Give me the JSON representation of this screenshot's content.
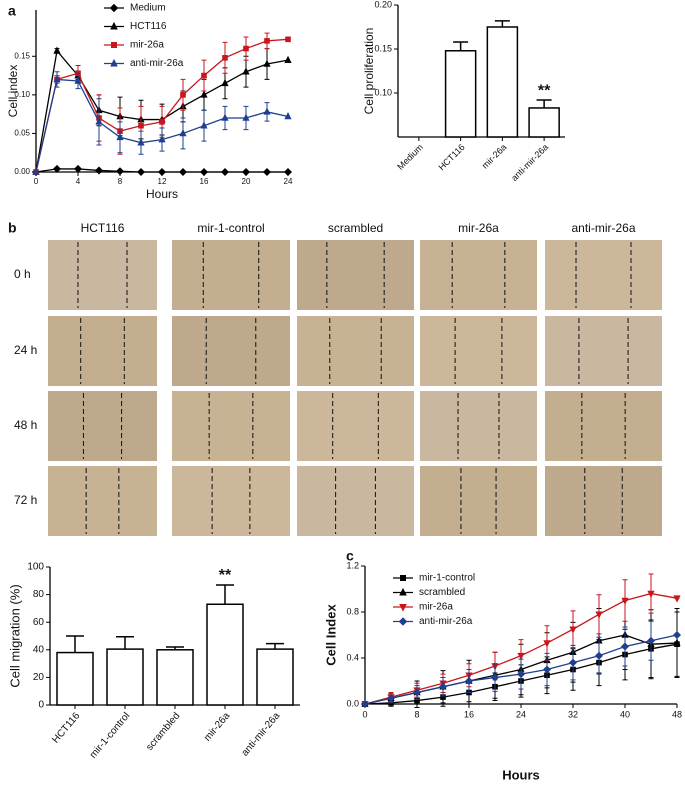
{
  "panel_labels": [
    "a",
    "b",
    "c"
  ],
  "image_grid": {
    "columns": [
      "HCT116",
      "mir-1-control",
      "scrambled",
      "mir-26a",
      "anti-mir-26a"
    ],
    "rows": [
      "0 h",
      "24 h",
      "48 h",
      "72 h"
    ]
  },
  "chart_data": [
    {
      "type": "line",
      "x_label": "Hours",
      "y_label": "Cell index",
      "x": [
        0,
        2,
        4,
        6,
        8,
        10,
        12,
        14,
        16,
        18,
        20,
        22,
        24
      ],
      "xlim": [
        0,
        24
      ],
      "xticks": [
        0,
        4,
        8,
        12,
        16,
        20,
        24
      ],
      "ylim": [
        0,
        0.21
      ],
      "yticks": [
        {
          "value": 0,
          "label": "0.00"
        },
        {
          "value": 0.05,
          "label": "0.05"
        },
        {
          "value": 0.1,
          "label": "0.10"
        },
        {
          "value": 0.15,
          "label": "0.15"
        }
      ],
      "series": [
        {
          "name": "Medium",
          "color": "#000000",
          "marker": "diamond",
          "values": [
            0,
            0.004,
            0.004,
            0.002,
            0.001,
            0,
            0,
            0,
            0,
            0,
            0,
            0,
            0
          ]
        },
        {
          "name": "HCT116",
          "color": "#000000",
          "marker": "triangle",
          "values": [
            0,
            0.157,
            0.125,
            0.08,
            0.072,
            0.068,
            0.068,
            0.085,
            0.1,
            0.115,
            0.13,
            0.14,
            0.145
          ],
          "errors": [
            null,
            0.003,
            0.005,
            0.02,
            0.025,
            0.025,
            0.02,
            0.02,
            0.02,
            0.02,
            0.02,
            0.02,
            null
          ]
        },
        {
          "name": "mir-26a",
          "color": "#c8161d",
          "marker": "square",
          "values": [
            0,
            0.12,
            0.128,
            0.07,
            0.053,
            0.06,
            0.065,
            0.1,
            0.125,
            0.148,
            0.16,
            0.17,
            0.172
          ],
          "errors": [
            null,
            0.005,
            0.01,
            0.03,
            0.03,
            0.025,
            0.02,
            0.02,
            0.02,
            0.02,
            0.015,
            0.01,
            null
          ]
        },
        {
          "name": "anti-mir-26a",
          "color": "#1f3f8f",
          "marker": "triangle",
          "values": [
            0,
            0.12,
            0.118,
            0.065,
            0.045,
            0.038,
            0.042,
            0.05,
            0.06,
            0.07,
            0.07,
            0.078,
            0.072
          ],
          "errors": [
            null,
            0.01,
            0.01,
            0.03,
            0.02,
            0.015,
            0.015,
            0.02,
            0.02,
            0.015,
            0.015,
            0.012,
            null
          ]
        }
      ]
    },
    {
      "type": "bar",
      "y_label": "Cell proliferation",
      "categories": [
        "Medium",
        "HCT116",
        "mir-26a",
        "anti-mir-26a"
      ],
      "values": [
        0.05,
        0.148,
        0.175,
        0.083
      ],
      "errors": [
        null,
        0.01,
        0.007,
        0.009
      ],
      "ylim": [
        0.05,
        0.2
      ],
      "yticks": [
        {
          "value": 0.1,
          "label": "0.10"
        },
        {
          "value": 0.15,
          "label": "0.15"
        },
        {
          "value": 0.2,
          "label": "0.20"
        }
      ],
      "annotations": [
        {
          "text": "**",
          "category": "anti-mir-26a"
        }
      ]
    },
    {
      "type": "bar",
      "y_label": "Cell migration (%)",
      "categories": [
        "HCT116",
        "mir-1-control",
        "scrambled",
        "mir-26a",
        "anti-mir-26a"
      ],
      "values": [
        38,
        40.5,
        40,
        73,
        40.5
      ],
      "errors": [
        12,
        9,
        2,
        14,
        4
      ],
      "ylim": [
        0,
        100
      ],
      "yticks": [
        0,
        20,
        40,
        60,
        80,
        100
      ],
      "annotations": [
        {
          "text": "**",
          "category": "mir-26a"
        }
      ]
    },
    {
      "type": "line",
      "x_label": "Hours",
      "y_label": "Cell Index",
      "x": [
        0,
        4,
        8,
        12,
        16,
        20,
        24,
        28,
        32,
        36,
        40,
        44,
        48
      ],
      "xlim": [
        0,
        48
      ],
      "xticks": [
        0,
        8,
        16,
        24,
        32,
        40,
        48
      ],
      "ylim": [
        0,
        1.2
      ],
      "yticks": [
        {
          "value": 0,
          "label": "0.0"
        },
        {
          "value": 0.4,
          "label": "0.4"
        },
        {
          "value": 0.8,
          "label": "0.8"
        },
        {
          "value": 1.2,
          "label": "1.2"
        }
      ],
      "series": [
        {
          "name": "mir-1-control",
          "color": "#000000",
          "marker": "square",
          "values": [
            0,
            0.01,
            0.03,
            0.06,
            0.1,
            0.15,
            0.2,
            0.25,
            0.3,
            0.36,
            0.43,
            0.48,
            0.52
          ],
          "errors": [
            0,
            0.03,
            0.06,
            0.08,
            0.1,
            0.12,
            0.14,
            0.16,
            0.18,
            0.2,
            0.22,
            0.25,
            0.28
          ]
        },
        {
          "name": "scrambled",
          "color": "#000000",
          "marker": "triangle",
          "values": [
            0,
            0.05,
            0.1,
            0.15,
            0.2,
            0.25,
            0.3,
            0.38,
            0.45,
            0.55,
            0.6,
            0.52,
            0.53
          ],
          "errors": [
            0,
            0.05,
            0.1,
            0.14,
            0.18,
            0.2,
            0.22,
            0.24,
            0.26,
            0.28,
            0.3,
            0.3,
            0.3
          ]
        },
        {
          "name": "mir-26a",
          "color": "#c8161d",
          "marker": "triangle-down",
          "values": [
            0,
            0.06,
            0.12,
            0.18,
            0.25,
            0.33,
            0.42,
            0.53,
            0.65,
            0.78,
            0.9,
            0.96,
            0.92
          ],
          "errors": [
            0,
            0.04,
            0.06,
            0.08,
            0.1,
            0.12,
            0.14,
            0.15,
            0.16,
            0.17,
            0.18,
            0.17,
            0
          ]
        },
        {
          "name": "anti-mir-26a",
          "color": "#1f3f8f",
          "marker": "diamond",
          "values": [
            0,
            0.05,
            0.1,
            0.15,
            0.2,
            0.23,
            0.26,
            0.3,
            0.36,
            0.42,
            0.5,
            0.55,
            0.6
          ],
          "errors": [
            0,
            0.04,
            0.06,
            0.08,
            0.1,
            0.12,
            0.13,
            0.14,
            0.15,
            0.16,
            0.17,
            0.17,
            0
          ]
        }
      ]
    }
  ]
}
